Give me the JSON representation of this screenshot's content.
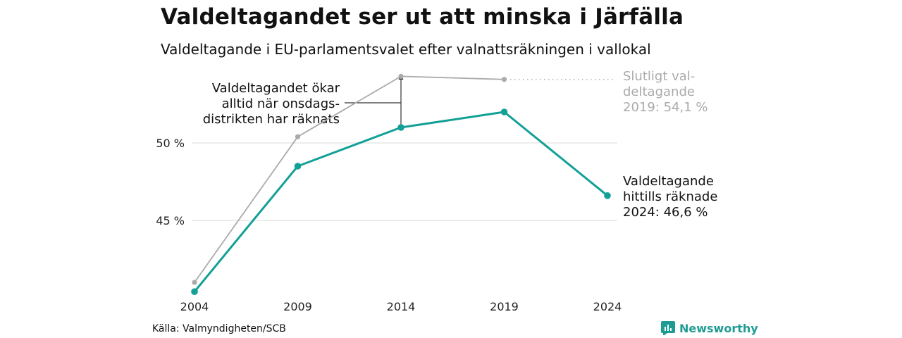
{
  "title": "Valdeltagandet ser ut att minska i Järfälla",
  "subtitle": "Valdeltagande i EU-parlamentsvalet efter valnattsräkningen i vallokal",
  "source": "Källa: Valmyndigheten/SCB",
  "brand": "Newsworthy",
  "chart_data": {
    "type": "line",
    "x": [
      "2004",
      "2009",
      "2014",
      "2019",
      "2024"
    ],
    "ylim": [
      40,
      55.5
    ],
    "y_ticks": [
      45,
      50
    ],
    "y_tick_labels": [
      "45 %",
      "50 %"
    ],
    "grid": true,
    "series": [
      {
        "name": "Slutligt valdeltagande",
        "color": "#aaaaaa",
        "values": [
          41.0,
          50.4,
          54.3,
          54.1,
          null
        ]
      },
      {
        "name": "Valdeltagande hittills räknade",
        "color": "#13a097",
        "values": [
          40.4,
          48.5,
          51.0,
          52.0,
          46.6
        ]
      }
    ],
    "annotations": {
      "final_line1": "Slutligt val-",
      "final_line2": "deltagande",
      "final_line3": "2019: 54,1 %",
      "current_line1": "Valdeltagande",
      "current_line2": "hittills räknade",
      "current_line3": "2024: 46,6 %",
      "note_line1": "Valdeltagandet ökar",
      "note_line2": "alltid när onsdags-",
      "note_line3": "distrikten har räknats"
    }
  }
}
